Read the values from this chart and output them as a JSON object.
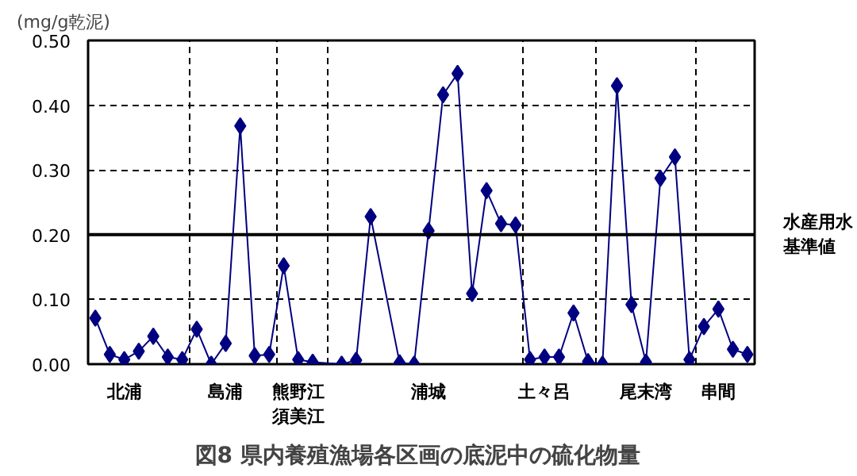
{
  "chart_data": {
    "type": "line",
    "title": "図8  県内養殖漁場各区画の底泥中の硫化物量",
    "ylabel": "(mg/g乾泥)",
    "categories": [
      null,
      null,
      "北浦",
      null,
      null,
      null,
      null,
      null,
      null,
      "島浦",
      null,
      null,
      null,
      null,
      "熊野江須美江",
      null,
      null,
      null,
      null,
      null,
      null,
      null,
      null,
      "浦城",
      null,
      null,
      null,
      null,
      null,
      null,
      null,
      "土々呂",
      null,
      null,
      null,
      null,
      null,
      null,
      "尾末湾",
      null,
      null,
      null,
      null,
      "串間",
      null,
      null
    ],
    "series": [
      {
        "color": "#000080",
        "values": [
          0.071,
          0.015,
          0.007,
          0.02,
          0.043,
          0.011,
          0.007,
          0.054,
          0.0,
          0.032,
          0.368,
          0.013,
          0.015,
          0.152,
          0.007,
          0.003,
          null,
          0.0,
          0.006,
          0.228,
          null,
          0.002,
          0.0,
          0.206,
          0.416,
          0.449,
          0.109,
          0.268,
          0.217,
          0.215,
          0.007,
          0.011,
          0.011,
          0.079,
          0.004,
          0.0,
          0.43,
          0.092,
          0.003,
          0.287,
          0.32,
          0.007,
          0.058,
          0.085,
          0.023,
          0.015
        ]
      }
    ],
    "ylim": [
      0,
      0.5
    ],
    "yticks": [
      {
        "value": 0,
        "label": "0.00"
      },
      {
        "value": 0.1,
        "label": "0.10"
      },
      {
        "value": 0.2,
        "label": "0.20"
      },
      {
        "value": 0.3,
        "label": "0.30"
      },
      {
        "value": 0.4,
        "label": "0.40"
      },
      {
        "value": 0.5,
        "label": "0.50"
      }
    ],
    "grid": true,
    "marker": "diamond",
    "line_style": "solid",
    "ref_lines": [
      {
        "axis": "y",
        "value": 0.2,
        "label": "水産用水基準値",
        "color": "#000000",
        "line_style": "solid"
      }
    ]
  }
}
